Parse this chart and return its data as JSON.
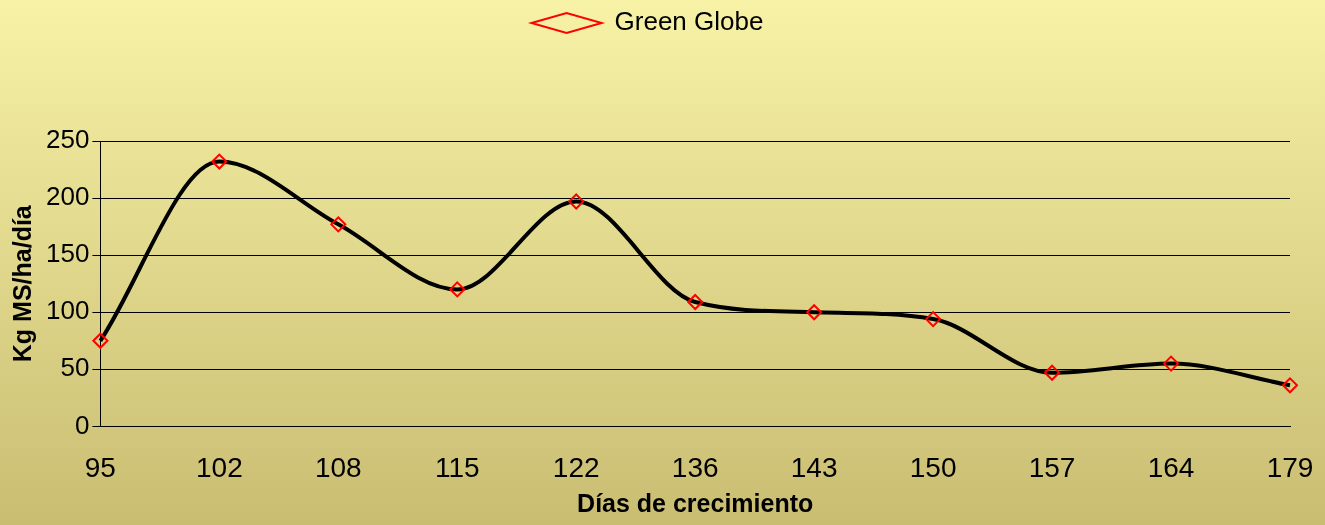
{
  "chart_data": {
    "type": "line",
    "xlabel": "Días de crecimiento",
    "ylabel": "Kg MS/ha/día",
    "categories": [
      "95",
      "102",
      "108",
      "115",
      "122",
      "136",
      "143",
      "150",
      "157",
      "164",
      "179"
    ],
    "series": [
      {
        "name": "Green Globe",
        "color": "#000000",
        "values": [
          75,
          232,
          177,
          120,
          197,
          109,
          100,
          94,
          47,
          55,
          36
        ]
      }
    ],
    "ylim": [
      0,
      250
    ],
    "yticks": [
      0,
      50,
      100,
      150,
      200,
      250
    ],
    "grid": "y",
    "legend": "top",
    "marker": "diamond",
    "line_style": "solid"
  }
}
